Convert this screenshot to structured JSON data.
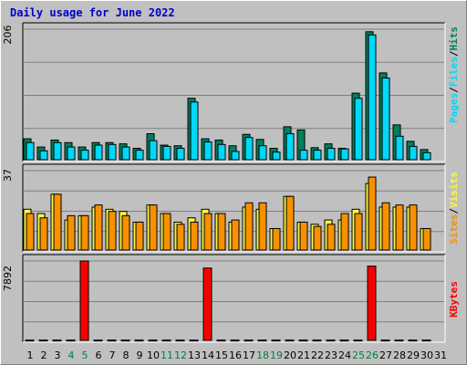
{
  "title": "Daily usage for June 2022",
  "colors": {
    "background": "#c0c0c0",
    "title": "#0000c8",
    "hits": "#00805c",
    "files": "#00d8f8",
    "pages": "#00d8f8",
    "visits": "#f8f840",
    "sites": "#f89000",
    "kbytes": "#f80000",
    "weekend_label": "#008040",
    "weekday_label": "#000000"
  },
  "chart_data": [
    {
      "type": "bar",
      "panel": "hits",
      "ymax_label": "206",
      "ymax": 206,
      "legend": [
        "Pages",
        "Files",
        "Hits"
      ],
      "categories": [
        "1",
        "2",
        "3",
        "4",
        "5",
        "6",
        "7",
        "8",
        "9",
        "10",
        "11",
        "12",
        "13",
        "14",
        "15",
        "16",
        "17",
        "18",
        "19",
        "20",
        "21",
        "22",
        "23",
        "24",
        "25",
        "26",
        "27",
        "28",
        "29",
        "30",
        "31"
      ],
      "series": [
        {
          "name": "Hits",
          "values": [
            33,
            20,
            31,
            27,
            20,
            27,
            27,
            25,
            18,
            41,
            23,
            22,
            97,
            33,
            31,
            22,
            40,
            32,
            18,
            52,
            47,
            19,
            25,
            18,
            105,
            202,
            137,
            55,
            29,
            16,
            null
          ]
        },
        {
          "name": "Files",
          "values": [
            27,
            14,
            27,
            20,
            15,
            23,
            24,
            20,
            15,
            30,
            21,
            18,
            91,
            28,
            24,
            13,
            35,
            22,
            12,
            41,
            15,
            15,
            18,
            17,
            97,
            197,
            129,
            37,
            21,
            11,
            null
          ]
        }
      ]
    },
    {
      "type": "bar",
      "panel": "visits",
      "ymax_label": "37",
      "ymax": 37,
      "legend": [
        "Sites",
        "Visits"
      ],
      "categories": [
        "1",
        "2",
        "3",
        "4",
        "5",
        "6",
        "7",
        "8",
        "9",
        "10",
        "11",
        "12",
        "13",
        "14",
        "15",
        "16",
        "17",
        "18",
        "19",
        "20",
        "21",
        "22",
        "23",
        "24",
        "25",
        "26",
        "27",
        "28",
        "29",
        "30",
        "31"
      ],
      "series": [
        {
          "name": "Visits",
          "values": [
            19,
            17,
            26,
            14,
            16,
            20,
            19,
            18,
            13,
            21,
            17,
            13,
            15,
            19,
            17,
            13,
            20,
            19,
            10,
            25,
            13,
            12,
            14,
            14,
            19,
            31,
            20,
            20,
            20,
            10,
            null
          ]
        },
        {
          "name": "Sites",
          "values": [
            17,
            15,
            26,
            16,
            16,
            21,
            18,
            16,
            13,
            21,
            17,
            12,
            13,
            17,
            17,
            14,
            22,
            22,
            10,
            25,
            13,
            11,
            12,
            17,
            17,
            34,
            22,
            21,
            21,
            10,
            null
          ]
        }
      ]
    },
    {
      "type": "bar",
      "panel": "kbytes",
      "ymax_label": "7892",
      "ymax": 7892,
      "legend": [
        "KBytes"
      ],
      "categories": [
        "1",
        "2",
        "3",
        "4",
        "5",
        "6",
        "7",
        "8",
        "9",
        "10",
        "11",
        "12",
        "13",
        "14",
        "15",
        "16",
        "17",
        "18",
        "19",
        "20",
        "21",
        "22",
        "23",
        "24",
        "25",
        "26",
        "27",
        "28",
        "29",
        "30",
        "31"
      ],
      "series": [
        {
          "name": "KBytes",
          "values": [
            30,
            30,
            30,
            30,
            7892,
            30,
            30,
            30,
            30,
            30,
            30,
            30,
            30,
            7190,
            30,
            30,
            30,
            30,
            30,
            30,
            30,
            30,
            30,
            30,
            30,
            7380,
            30,
            30,
            30,
            30,
            null
          ]
        }
      ]
    }
  ],
  "x_axis": {
    "labels": [
      "1",
      "2",
      "3",
      "4",
      "5",
      "6",
      "7",
      "8",
      "9",
      "10",
      "11",
      "12",
      "13",
      "14",
      "15",
      "16",
      "17",
      "18",
      "19",
      "20",
      "21",
      "22",
      "23",
      "24",
      "25",
      "26",
      "27",
      "28",
      "29",
      "30",
      "31"
    ],
    "weekend_days": [
      "4",
      "5",
      "11",
      "12",
      "18",
      "19",
      "25",
      "26"
    ]
  }
}
